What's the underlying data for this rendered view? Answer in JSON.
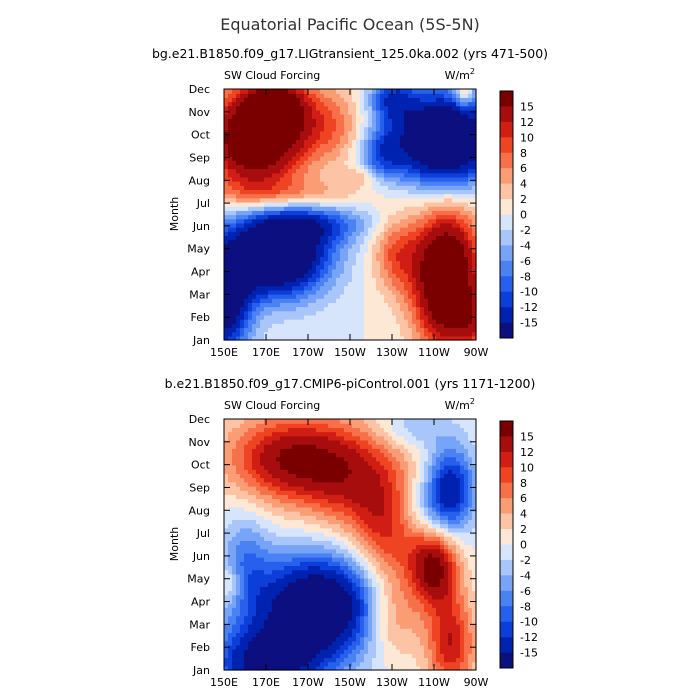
{
  "title": "Equatorial Pacific Ocean (5S-5N)",
  "chart_data": [
    {
      "type": "heatmap",
      "subtitle": "bg.e21.B1850.f09_g17.LIGtransient_125.0ka.002 (yrs 471-500)",
      "left_label": "SW Cloud Forcing",
      "units_label": "W/m",
      "units_superscript": "2",
      "ylabel": "Month",
      "xlabel": "",
      "x_ticks": [
        "150E",
        "170E",
        "170W",
        "150W",
        "130W",
        "110W",
        "90W"
      ],
      "y_ticks": [
        "Jan",
        "Feb",
        "Mar",
        "Apr",
        "May",
        "Jun",
        "Jul",
        "Aug",
        "Sep",
        "Oct",
        "Nov",
        "Dec"
      ],
      "colorbar_ticks": [
        "15",
        "12",
        "10",
        "8",
        "6",
        "4",
        "2",
        "0",
        "-2",
        "-4",
        "-6",
        "-8",
        "-10",
        "-12",
        "-15"
      ],
      "x_range_deg_east": [
        150,
        270
      ],
      "features": [
        {
          "lon": 165,
          "month": 9.8,
          "amp": 22,
          "slon": 16,
          "smon": 1.5
        },
        {
          "lon": 175,
          "month": 11.3,
          "amp": 14,
          "slon": 10,
          "smon": 0.9
        },
        {
          "lon": 200,
          "month": 10.5,
          "amp": 7,
          "slon": 12,
          "smon": 1.2
        },
        {
          "lon": 180,
          "month": 7.4,
          "amp": 6,
          "slon": 26,
          "smon": 0.5
        },
        {
          "lon": 215,
          "month": 8.2,
          "amp": 4,
          "slon": 6,
          "smon": 0.3
        },
        {
          "lon": 175,
          "month": 4.8,
          "amp": -26,
          "slon": 17,
          "smon": 1.3
        },
        {
          "lon": 150,
          "month": 2.6,
          "amp": -18,
          "slon": 9,
          "smon": 1.7
        },
        {
          "lon": 195,
          "month": 6.1,
          "amp": -8,
          "slon": 18,
          "smon": 0.6
        },
        {
          "lon": 255,
          "month": 9.8,
          "amp": -26,
          "slon": 17,
          "smon": 1.4
        },
        {
          "lon": 230,
          "month": 11.6,
          "amp": -10,
          "slon": 8,
          "smon": 0.7
        },
        {
          "lon": 225,
          "month": 9.2,
          "amp": -8,
          "slon": 7,
          "smon": 0.8
        },
        {
          "lon": 256,
          "month": 3.7,
          "amp": 24,
          "slon": 11,
          "smon": 2.1
        },
        {
          "lon": 232,
          "month": 4.8,
          "amp": 8,
          "slon": 8,
          "smon": 1.2
        },
        {
          "lon": 268,
          "month": 1.8,
          "amp": 6,
          "slon": 5,
          "smon": 0.8
        },
        {
          "lon": 264,
          "month": 12.0,
          "amp": 8,
          "slon": 3,
          "smon": 0.6
        }
      ]
    },
    {
      "type": "heatmap",
      "subtitle": "b.e21.B1850.f09_g17.CMIP6-piControl.001 (yrs 1171-1200)",
      "left_label": "SW Cloud Forcing",
      "units_label": "W/m",
      "units_superscript": "2",
      "ylabel": "Month",
      "xlabel": "",
      "x_ticks": [
        "150E",
        "170E",
        "170W",
        "150W",
        "130W",
        "110W",
        "90W"
      ],
      "y_ticks": [
        "Jan",
        "Feb",
        "Mar",
        "Apr",
        "May",
        "Jun",
        "Jul",
        "Aug",
        "Sep",
        "Oct",
        "Nov",
        "Dec"
      ],
      "colorbar_ticks": [
        "15",
        "12",
        "10",
        "8",
        "6",
        "4",
        "2",
        "0",
        "-2",
        "-4",
        "-6",
        "-8",
        "-10",
        "-12",
        "-15"
      ],
      "x_range_deg_east": [
        150,
        270
      ],
      "features": [
        {
          "lon": 180,
          "month": 10.3,
          "amp": 14,
          "slon": 20,
          "smon": 1.3
        },
        {
          "lon": 210,
          "month": 9.5,
          "amp": 10,
          "slon": 18,
          "smon": 1.6
        },
        {
          "lon": 228,
          "month": 7.0,
          "amp": 10,
          "slon": 12,
          "smon": 1.8
        },
        {
          "lon": 250,
          "month": 5.5,
          "amp": 16,
          "slon": 8,
          "smon": 1.2
        },
        {
          "lon": 230,
          "month": 3.3,
          "amp": 8,
          "slon": 10,
          "smon": 1.3
        },
        {
          "lon": 258,
          "month": 2.2,
          "amp": 12,
          "slon": 8,
          "smon": 1.5
        },
        {
          "lon": 153,
          "month": 4.8,
          "amp": 5,
          "slon": 4,
          "smon": 0.6
        },
        {
          "lon": 195,
          "month": 3.8,
          "amp": -22,
          "slon": 22,
          "smon": 1.6
        },
        {
          "lon": 170,
          "month": 1.3,
          "amp": -16,
          "slon": 18,
          "smon": 1.1
        },
        {
          "lon": 160,
          "month": 5.8,
          "amp": -6,
          "slon": 8,
          "smon": 1.5
        },
        {
          "lon": 258,
          "month": 9.0,
          "amp": -14,
          "slon": 8,
          "smon": 1.3
        },
        {
          "lon": 240,
          "month": 11.6,
          "amp": -4,
          "slon": 12,
          "smon": 0.6
        },
        {
          "lon": 245,
          "month": 8.0,
          "amp": -5,
          "slon": 10,
          "smon": 1.0
        }
      ]
    }
  ],
  "colors": {
    "levels": [
      "#0b0f80",
      "#0022b0",
      "#0c3ed9",
      "#2760ec",
      "#4a82f3",
      "#77a4f7",
      "#a9c6fa",
      "#d6e5fc",
      "#fde8d6",
      "#fcc4a4",
      "#fa9c74",
      "#f7704a",
      "#ee4422",
      "#d01e14",
      "#a80d0d",
      "#7a0000"
    ],
    "colorbar": [
      "#7a0000",
      "#a80d0d",
      "#d01e14",
      "#ee4422",
      "#f7704a",
      "#fa9c74",
      "#fcc4a4",
      "#fde8d6",
      "#d6e5fc",
      "#a9c6fa",
      "#77a4f7",
      "#4a82f3",
      "#2760ec",
      "#0c3ed9",
      "#0022b0",
      "#0b0f80"
    ]
  }
}
